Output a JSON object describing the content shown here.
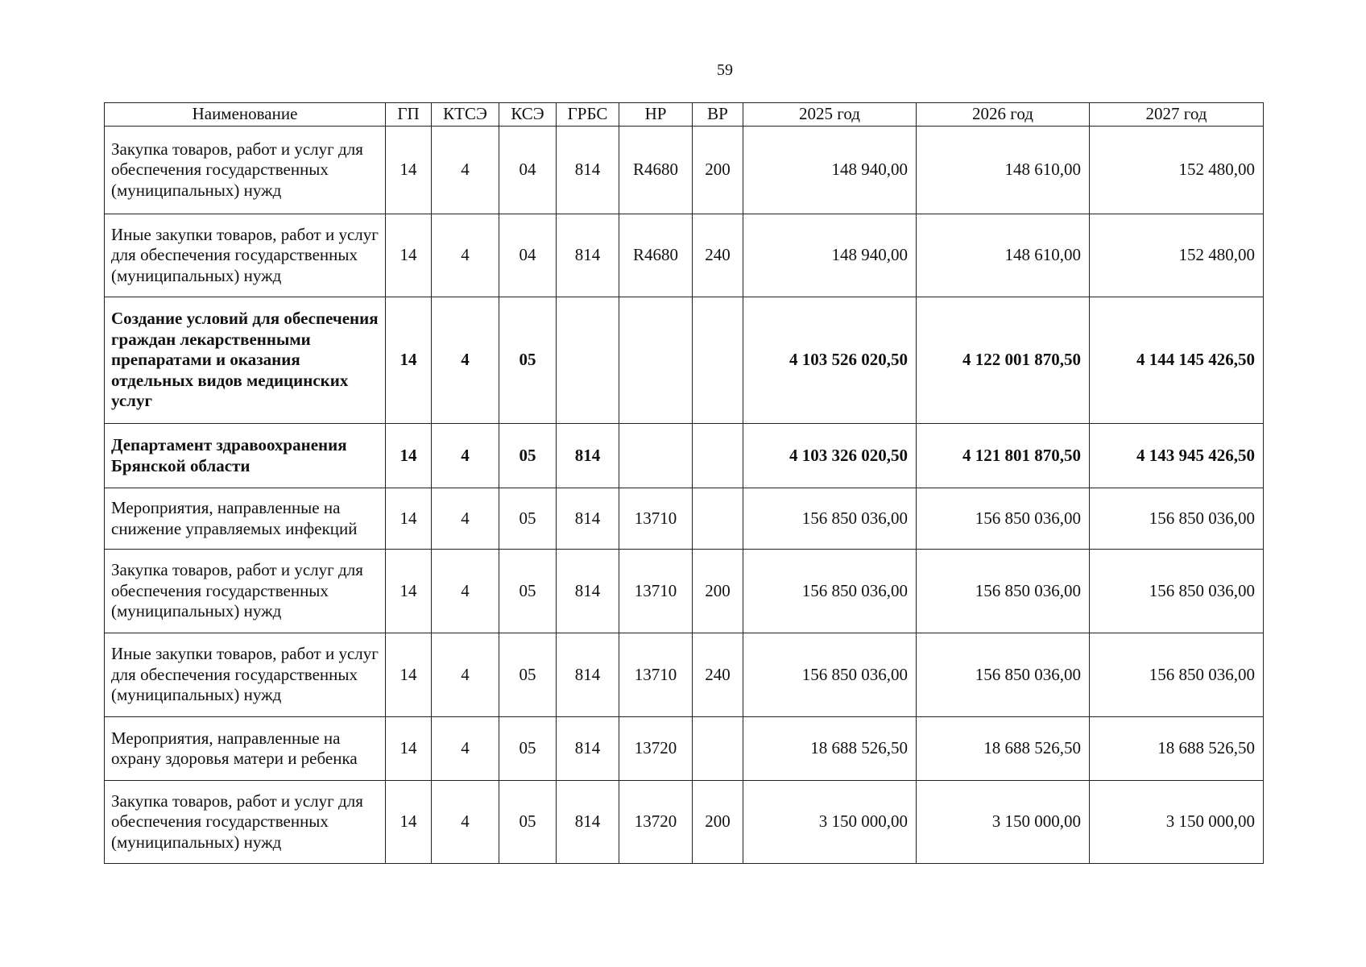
{
  "page_number": "59",
  "headers": [
    "Наименование",
    "ГП",
    "КТСЭ",
    "КСЭ",
    "ГРБС",
    "НР",
    "ВР",
    "2025 год",
    "2026 год",
    "2027 год"
  ],
  "rows": [
    {
      "name": "Закупка товаров, работ и услуг для обеспечения государственных (муниципальных) нужд",
      "gp": "14",
      "ktse": "4",
      "kse": "04",
      "grbs": "814",
      "nr": "R4680",
      "vr": "200",
      "y2025": "148 940,00",
      "y2026": "148 610,00",
      "y2027": "152 480,00",
      "bold": false
    },
    {
      "name": "Иные закупки товаров, работ и услуг для обеспечения государственных (муниципальных) нужд",
      "gp": "14",
      "ktse": "4",
      "kse": "04",
      "grbs": "814",
      "nr": "R4680",
      "vr": "240",
      "y2025": "148 940,00",
      "y2026": "148 610,00",
      "y2027": "152 480,00",
      "bold": false
    },
    {
      "name": "Создание условий для обеспечения граждан лекарственными препаратами и оказания отдельных видов медицинских услуг",
      "gp": "14",
      "ktse": "4",
      "kse": "05",
      "grbs": "",
      "nr": "",
      "vr": "",
      "y2025": "4 103 526 020,50",
      "y2026": "4 122 001 870,50",
      "y2027": "4 144 145 426,50",
      "bold": true
    },
    {
      "name": "Департамент здравоохранения Брянской области",
      "gp": "14",
      "ktse": "4",
      "kse": "05",
      "grbs": "814",
      "nr": "",
      "vr": "",
      "y2025": "4 103 326 020,50",
      "y2026": "4 121 801 870,50",
      "y2027": "4 143 945 426,50",
      "bold": true
    },
    {
      "name": "Мероприятия, направленные на снижение управляемых инфекций",
      "gp": "14",
      "ktse": "4",
      "kse": "05",
      "grbs": "814",
      "nr": "13710",
      "vr": "",
      "y2025": "156 850 036,00",
      "y2026": "156 850 036,00",
      "y2027": "156 850 036,00",
      "bold": false
    },
    {
      "name": "Закупка товаров, работ и услуг для обеспечения государственных (муниципальных) нужд",
      "gp": "14",
      "ktse": "4",
      "kse": "05",
      "grbs": "814",
      "nr": "13710",
      "vr": "200",
      "y2025": "156 850 036,00",
      "y2026": "156 850 036,00",
      "y2027": "156 850 036,00",
      "bold": false
    },
    {
      "name": "Иные закупки товаров, работ и услуг для обеспечения государственных (муниципальных) нужд",
      "gp": "14",
      "ktse": "4",
      "kse": "05",
      "grbs": "814",
      "nr": "13710",
      "vr": "240",
      "y2025": "156 850 036,00",
      "y2026": "156 850 036,00",
      "y2027": "156 850 036,00",
      "bold": false
    },
    {
      "name": "Мероприятия, направленные на охрану здоровья матери и ребенка",
      "gp": "14",
      "ktse": "4",
      "kse": "05",
      "grbs": "814",
      "nr": "13720",
      "vr": "",
      "y2025": "18 688 526,50",
      "y2026": "18 688 526,50",
      "y2027": "18 688 526,50",
      "bold": false
    },
    {
      "name": "Закупка товаров, работ и услуг для обеспечения государственных (муниципальных) нужд",
      "gp": "14",
      "ktse": "4",
      "kse": "05",
      "grbs": "814",
      "nr": "13720",
      "vr": "200",
      "y2025": "3 150 000,00",
      "y2026": "3 150 000,00",
      "y2027": "3 150 000,00",
      "bold": false
    }
  ]
}
